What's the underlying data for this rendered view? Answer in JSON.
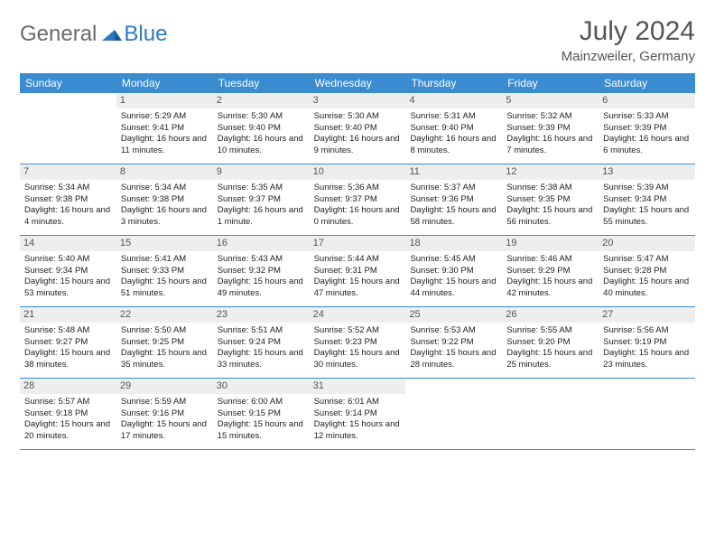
{
  "brand": {
    "part1": "General",
    "part2": "Blue"
  },
  "title": "July 2024",
  "location": "Mainzweiler, Germany",
  "colors": {
    "header_bg": "#3b8bd0",
    "header_text": "#ffffff",
    "datenum_bg": "#eeeeee",
    "border": "#3b8bd0",
    "brand_gray": "#6a6a6a",
    "brand_blue": "#2f78c2"
  },
  "dayNames": [
    "Sunday",
    "Monday",
    "Tuesday",
    "Wednesday",
    "Thursday",
    "Friday",
    "Saturday"
  ],
  "weeks": [
    [
      {
        "date": "",
        "sunrise": "",
        "sunset": "",
        "daylight": ""
      },
      {
        "date": "1",
        "sunrise": "Sunrise: 5:29 AM",
        "sunset": "Sunset: 9:41 PM",
        "daylight": "Daylight: 16 hours and 11 minutes."
      },
      {
        "date": "2",
        "sunrise": "Sunrise: 5:30 AM",
        "sunset": "Sunset: 9:40 PM",
        "daylight": "Daylight: 16 hours and 10 minutes."
      },
      {
        "date": "3",
        "sunrise": "Sunrise: 5:30 AM",
        "sunset": "Sunset: 9:40 PM",
        "daylight": "Daylight: 16 hours and 9 minutes."
      },
      {
        "date": "4",
        "sunrise": "Sunrise: 5:31 AM",
        "sunset": "Sunset: 9:40 PM",
        "daylight": "Daylight: 16 hours and 8 minutes."
      },
      {
        "date": "5",
        "sunrise": "Sunrise: 5:32 AM",
        "sunset": "Sunset: 9:39 PM",
        "daylight": "Daylight: 16 hours and 7 minutes."
      },
      {
        "date": "6",
        "sunrise": "Sunrise: 5:33 AM",
        "sunset": "Sunset: 9:39 PM",
        "daylight": "Daylight: 16 hours and 6 minutes."
      }
    ],
    [
      {
        "date": "7",
        "sunrise": "Sunrise: 5:34 AM",
        "sunset": "Sunset: 9:38 PM",
        "daylight": "Daylight: 16 hours and 4 minutes."
      },
      {
        "date": "8",
        "sunrise": "Sunrise: 5:34 AM",
        "sunset": "Sunset: 9:38 PM",
        "daylight": "Daylight: 16 hours and 3 minutes."
      },
      {
        "date": "9",
        "sunrise": "Sunrise: 5:35 AM",
        "sunset": "Sunset: 9:37 PM",
        "daylight": "Daylight: 16 hours and 1 minute."
      },
      {
        "date": "10",
        "sunrise": "Sunrise: 5:36 AM",
        "sunset": "Sunset: 9:37 PM",
        "daylight": "Daylight: 16 hours and 0 minutes."
      },
      {
        "date": "11",
        "sunrise": "Sunrise: 5:37 AM",
        "sunset": "Sunset: 9:36 PM",
        "daylight": "Daylight: 15 hours and 58 minutes."
      },
      {
        "date": "12",
        "sunrise": "Sunrise: 5:38 AM",
        "sunset": "Sunset: 9:35 PM",
        "daylight": "Daylight: 15 hours and 56 minutes."
      },
      {
        "date": "13",
        "sunrise": "Sunrise: 5:39 AM",
        "sunset": "Sunset: 9:34 PM",
        "daylight": "Daylight: 15 hours and 55 minutes."
      }
    ],
    [
      {
        "date": "14",
        "sunrise": "Sunrise: 5:40 AM",
        "sunset": "Sunset: 9:34 PM",
        "daylight": "Daylight: 15 hours and 53 minutes."
      },
      {
        "date": "15",
        "sunrise": "Sunrise: 5:41 AM",
        "sunset": "Sunset: 9:33 PM",
        "daylight": "Daylight: 15 hours and 51 minutes."
      },
      {
        "date": "16",
        "sunrise": "Sunrise: 5:43 AM",
        "sunset": "Sunset: 9:32 PM",
        "daylight": "Daylight: 15 hours and 49 minutes."
      },
      {
        "date": "17",
        "sunrise": "Sunrise: 5:44 AM",
        "sunset": "Sunset: 9:31 PM",
        "daylight": "Daylight: 15 hours and 47 minutes."
      },
      {
        "date": "18",
        "sunrise": "Sunrise: 5:45 AM",
        "sunset": "Sunset: 9:30 PM",
        "daylight": "Daylight: 15 hours and 44 minutes."
      },
      {
        "date": "19",
        "sunrise": "Sunrise: 5:46 AM",
        "sunset": "Sunset: 9:29 PM",
        "daylight": "Daylight: 15 hours and 42 minutes."
      },
      {
        "date": "20",
        "sunrise": "Sunrise: 5:47 AM",
        "sunset": "Sunset: 9:28 PM",
        "daylight": "Daylight: 15 hours and 40 minutes."
      }
    ],
    [
      {
        "date": "21",
        "sunrise": "Sunrise: 5:48 AM",
        "sunset": "Sunset: 9:27 PM",
        "daylight": "Daylight: 15 hours and 38 minutes."
      },
      {
        "date": "22",
        "sunrise": "Sunrise: 5:50 AM",
        "sunset": "Sunset: 9:25 PM",
        "daylight": "Daylight: 15 hours and 35 minutes."
      },
      {
        "date": "23",
        "sunrise": "Sunrise: 5:51 AM",
        "sunset": "Sunset: 9:24 PM",
        "daylight": "Daylight: 15 hours and 33 minutes."
      },
      {
        "date": "24",
        "sunrise": "Sunrise: 5:52 AM",
        "sunset": "Sunset: 9:23 PM",
        "daylight": "Daylight: 15 hours and 30 minutes."
      },
      {
        "date": "25",
        "sunrise": "Sunrise: 5:53 AM",
        "sunset": "Sunset: 9:22 PM",
        "daylight": "Daylight: 15 hours and 28 minutes."
      },
      {
        "date": "26",
        "sunrise": "Sunrise: 5:55 AM",
        "sunset": "Sunset: 9:20 PM",
        "daylight": "Daylight: 15 hours and 25 minutes."
      },
      {
        "date": "27",
        "sunrise": "Sunrise: 5:56 AM",
        "sunset": "Sunset: 9:19 PM",
        "daylight": "Daylight: 15 hours and 23 minutes."
      }
    ],
    [
      {
        "date": "28",
        "sunrise": "Sunrise: 5:57 AM",
        "sunset": "Sunset: 9:18 PM",
        "daylight": "Daylight: 15 hours and 20 minutes."
      },
      {
        "date": "29",
        "sunrise": "Sunrise: 5:59 AM",
        "sunset": "Sunset: 9:16 PM",
        "daylight": "Daylight: 15 hours and 17 minutes."
      },
      {
        "date": "30",
        "sunrise": "Sunrise: 6:00 AM",
        "sunset": "Sunset: 9:15 PM",
        "daylight": "Daylight: 15 hours and 15 minutes."
      },
      {
        "date": "31",
        "sunrise": "Sunrise: 6:01 AM",
        "sunset": "Sunset: 9:14 PM",
        "daylight": "Daylight: 15 hours and 12 minutes."
      },
      {
        "date": "",
        "sunrise": "",
        "sunset": "",
        "daylight": ""
      },
      {
        "date": "",
        "sunrise": "",
        "sunset": "",
        "daylight": ""
      },
      {
        "date": "",
        "sunrise": "",
        "sunset": "",
        "daylight": ""
      }
    ]
  ]
}
